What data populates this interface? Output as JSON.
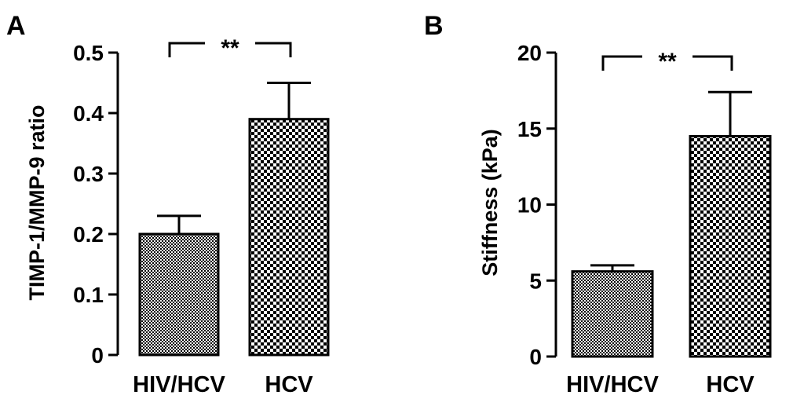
{
  "chart_data": [
    {
      "panel_label": "A",
      "type": "bar",
      "categories": [
        "HIV/HCV",
        "HCV"
      ],
      "values": [
        0.2,
        0.39
      ],
      "error": [
        0.03,
        0.06
      ],
      "ylabel": "TIMP-1/MMP-9 ratio",
      "ylim": [
        0,
        0.5
      ],
      "yticks": [
        "0",
        "0.1",
        "0.2",
        "0.3",
        "0.4",
        "0.5"
      ],
      "ytick_values": [
        0,
        0.1,
        0.2,
        0.3,
        0.4,
        0.5
      ],
      "significance": "**",
      "bar_patterns": [
        "fine-checker",
        "coarse-checker"
      ]
    },
    {
      "panel_label": "B",
      "type": "bar",
      "categories": [
        "HIV/HCV",
        "HCV"
      ],
      "values": [
        5.6,
        14.5
      ],
      "error": [
        0.4,
        2.9
      ],
      "ylabel": "Stiffness (kPa)",
      "ylim": [
        0,
        20
      ],
      "yticks": [
        "0",
        "5",
        "10",
        "15",
        "20"
      ],
      "ytick_values": [
        0,
        5,
        10,
        15,
        20
      ],
      "significance": "**",
      "bar_patterns": [
        "fine-checker",
        "coarse-checker"
      ]
    }
  ]
}
